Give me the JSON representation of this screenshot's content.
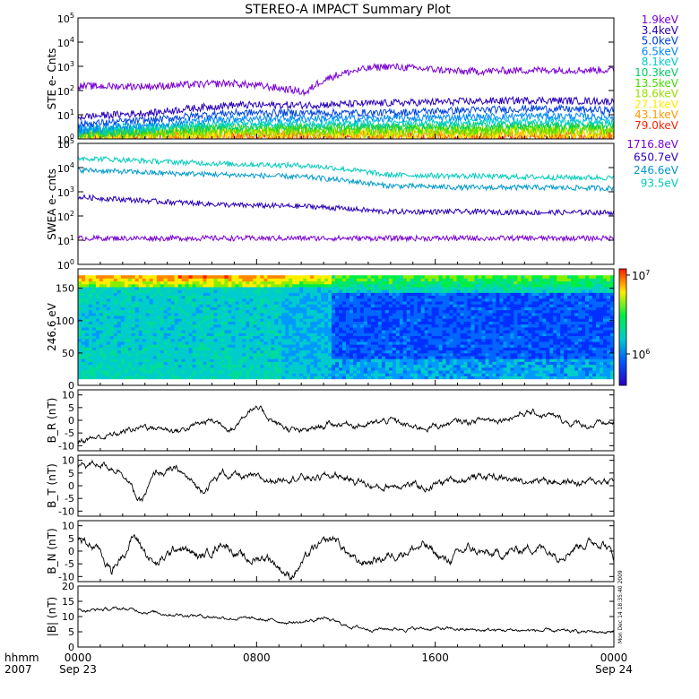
{
  "title": "STEREO-A IMPACT Summary Plot",
  "footer": {
    "row1_label": "hhmm",
    "row2_label": "2007",
    "times": [
      "0000",
      "0800",
      "1600",
      "0000"
    ],
    "dates": [
      "Sep 23",
      "Sep 24"
    ]
  },
  "stamp": "Mon Dec 14 18:35:40 2009",
  "colors": {
    "background": "#ffffff",
    "axes": "#000000",
    "trace": "#000000"
  },
  "chart_data": [
    {
      "id": "ste",
      "type": "line",
      "ylabel": "STE e- Cnts",
      "yscale": "log",
      "ylim": [
        1,
        100000
      ],
      "yticks": [
        "10^0",
        "10^1",
        "10^2",
        "10^3",
        "10^4",
        "10^5"
      ],
      "x_hours": [
        0,
        24
      ],
      "legend_position": "right",
      "series": [
        {
          "name": "1.9keV",
          "color": "#7a00d6",
          "levels": [
            150,
            150,
            200,
            80,
            1000,
            600,
            700,
            700
          ]
        },
        {
          "name": "3.4keV",
          "color": "#2a00b8",
          "levels": [
            8,
            12,
            25,
            25,
            30,
            35,
            40,
            35
          ]
        },
        {
          "name": "5.0keV",
          "color": "#0044dd",
          "levels": [
            4,
            6,
            12,
            12,
            12,
            15,
            18,
            15
          ]
        },
        {
          "name": "6.5keV",
          "color": "#0088ff",
          "levels": [
            2.5,
            4,
            7,
            7,
            7,
            8,
            9,
            8
          ]
        },
        {
          "name": "8.1keV",
          "color": "#00cccc",
          "levels": [
            2,
            3,
            4.5,
            4.5,
            4.5,
            5,
            5.5,
            5
          ]
        },
        {
          "name": "10.3keV",
          "color": "#00cc66",
          "levels": [
            1.8,
            2.5,
            3.2,
            3.2,
            3.2,
            3.5,
            3.8,
            3.5
          ]
        },
        {
          "name": "13.5keV",
          "color": "#44dd00",
          "levels": [
            1.5,
            2,
            2.5,
            2.5,
            2.5,
            2.6,
            2.8,
            2.6
          ]
        },
        {
          "name": "18.6keV",
          "color": "#99dd00",
          "levels": [
            1.4,
            1.7,
            2,
            2,
            2,
            2.1,
            2.2,
            2.1
          ]
        },
        {
          "name": "27.1keV",
          "color": "#ffee00",
          "levels": [
            1.3,
            1.5,
            1.7,
            1.6,
            1.6,
            1.7,
            1.8,
            1.7
          ]
        },
        {
          "name": "43.1keV",
          "color": "#ff9900",
          "levels": [
            1.2,
            1.4,
            1.5,
            1.4,
            1.4,
            1.4,
            1.5,
            1.4
          ]
        },
        {
          "name": "79.0keV",
          "color": "#ff2200",
          "levels": [
            1.3,
            1.4,
            1.3,
            1.2,
            1.2,
            1.2,
            1.3,
            1.2
          ]
        }
      ]
    },
    {
      "id": "swea",
      "type": "line",
      "ylabel": "SWEA e- cnts",
      "yscale": "log",
      "ylim": [
        1,
        100000
      ],
      "yticks": [
        "10^0",
        "10^1",
        "10^2",
        "10^3",
        "10^4",
        "10^5"
      ],
      "x_hours": [
        0,
        24
      ],
      "legend_position": "right",
      "series": [
        {
          "name": "1716.8eV",
          "color": "#7a00d6",
          "levels": [
            12,
            12,
            12,
            12,
            12,
            12,
            12,
            12
          ]
        },
        {
          "name": "650.7eV",
          "color": "#2a00b8",
          "levels": [
            600,
            400,
            280,
            250,
            150,
            150,
            140,
            140
          ]
        },
        {
          "name": "246.6eV",
          "color": "#0099cc",
          "levels": [
            8000,
            6000,
            5000,
            4000,
            1800,
            1500,
            1500,
            1400
          ]
        },
        {
          "name": "93.5eV",
          "color": "#00ccbb",
          "levels": [
            25000,
            18000,
            14000,
            12000,
            5000,
            4500,
            4000,
            3800
          ]
        }
      ]
    },
    {
      "id": "pad",
      "type": "heatmap",
      "ylabel": "246.6 eV",
      "ylim": [
        0,
        180
      ],
      "yticks": [
        0,
        50,
        100,
        150
      ],
      "x_hours": [
        0,
        24
      ],
      "colorbar": {
        "labels": [
          "10^6",
          "10^7"
        ],
        "range": [
          400000,
          12000000
        ],
        "scale": "log"
      }
    },
    {
      "id": "br",
      "type": "line",
      "ylabel": "B_R (nT)",
      "ylim": [
        -12,
        12
      ],
      "yticks": [
        -10,
        -5,
        0,
        5,
        10
      ],
      "x_hours": [
        0,
        24
      ],
      "keypoints": [
        [
          0,
          -8
        ],
        [
          1.5,
          -6
        ],
        [
          3,
          -2
        ],
        [
          4.5,
          -4
        ],
        [
          6,
          0
        ],
        [
          7,
          -3
        ],
        [
          7.7,
          5
        ],
        [
          8.3,
          3
        ],
        [
          9,
          -2
        ],
        [
          10,
          -5
        ],
        [
          11,
          -2
        ],
        [
          12,
          -1
        ],
        [
          13,
          -2
        ],
        [
          14,
          0
        ],
        [
          15,
          -3
        ],
        [
          16,
          -2
        ],
        [
          17,
          -1
        ],
        [
          18,
          0
        ],
        [
          19,
          1
        ],
        [
          20,
          3
        ],
        [
          21,
          2
        ],
        [
          22,
          -1
        ],
        [
          23,
          -2
        ],
        [
          24,
          -1
        ]
      ]
    },
    {
      "id": "bt",
      "type": "line",
      "ylabel": "B_T (nT)",
      "ylim": [
        -12,
        12
      ],
      "yticks": [
        -10,
        -5,
        0,
        5,
        10
      ],
      "x_hours": [
        0,
        24
      ],
      "keypoints": [
        [
          0,
          8
        ],
        [
          1,
          9
        ],
        [
          2,
          6
        ],
        [
          2.8,
          -7
        ],
        [
          3.5,
          5
        ],
        [
          4.5,
          6
        ],
        [
          5.5,
          -2
        ],
        [
          6.5,
          5
        ],
        [
          7.5,
          3
        ],
        [
          8.5,
          2
        ],
        [
          9.5,
          4
        ],
        [
          10.5,
          3
        ],
        [
          11.5,
          4
        ],
        [
          12.5,
          2
        ],
        [
          13.5,
          -1
        ],
        [
          14.5,
          1
        ],
        [
          15.5,
          -1
        ],
        [
          16.5,
          2
        ],
        [
          17.5,
          3
        ],
        [
          18.5,
          4
        ],
        [
          19.5,
          2
        ],
        [
          20.5,
          3
        ],
        [
          21.5,
          2
        ],
        [
          22.5,
          1
        ],
        [
          23.5,
          2
        ],
        [
          24,
          2
        ]
      ]
    },
    {
      "id": "bn",
      "type": "line",
      "ylabel": "B_N (nT)",
      "ylim": [
        -12,
        12
      ],
      "yticks": [
        -10,
        -5,
        0,
        5,
        10
      ],
      "x_hours": [
        0,
        24
      ],
      "keypoints": [
        [
          0,
          5
        ],
        [
          1,
          0
        ],
        [
          1.5,
          -8
        ],
        [
          2.5,
          6
        ],
        [
          3.5,
          -6
        ],
        [
          4.5,
          2
        ],
        [
          5.5,
          -3
        ],
        [
          6.5,
          4
        ],
        [
          7.5,
          -4
        ],
        [
          8.5,
          -2
        ],
        [
          9.5,
          -10
        ],
        [
          10.5,
          0
        ],
        [
          11.5,
          5
        ],
        [
          12.5,
          -5
        ],
        [
          13.5,
          -3
        ],
        [
          14.5,
          0
        ],
        [
          15.5,
          2
        ],
        [
          16.5,
          -4
        ],
        [
          17.5,
          1
        ],
        [
          18.5,
          -2
        ],
        [
          19.5,
          0
        ],
        [
          20.5,
          2
        ],
        [
          21.5,
          -1
        ],
        [
          22.5,
          3
        ],
        [
          23.5,
          4
        ],
        [
          24,
          -2
        ]
      ]
    },
    {
      "id": "bmag",
      "type": "line",
      "ylabel": "|B| (nT)",
      "ylim": [
        0,
        20
      ],
      "yticks": [
        0,
        5,
        10,
        15,
        20
      ],
      "x_hours": [
        0,
        24
      ],
      "keypoints": [
        [
          0,
          12
        ],
        [
          2,
          12.5
        ],
        [
          4,
          11
        ],
        [
          6,
          10
        ],
        [
          8,
          9
        ],
        [
          9,
          8.5
        ],
        [
          10,
          8
        ],
        [
          11,
          9.5
        ],
        [
          12,
          7
        ],
        [
          13,
          6
        ],
        [
          14,
          6
        ],
        [
          16,
          6
        ],
        [
          18,
          5.5
        ],
        [
          20,
          5.5
        ],
        [
          22,
          5
        ],
        [
          24,
          5
        ]
      ]
    }
  ]
}
